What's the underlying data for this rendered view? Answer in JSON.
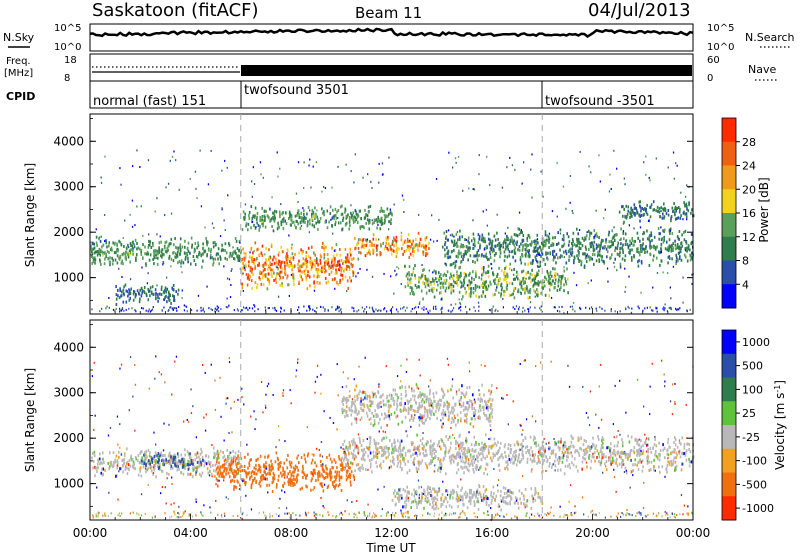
{
  "header": {
    "station": "Saskatoon (fitACF)",
    "beam": "Beam 11",
    "date": "04/Jul/2013"
  },
  "params_panel": {
    "nsky_label": "N.Sky",
    "nsky_ticks": [
      "10^5",
      "10^0"
    ],
    "nsearch_label": "N.Search",
    "nsearch_ticks": [
      "10^5",
      "10^0"
    ],
    "freq_label_1": "Freq.",
    "freq_label_2": "[MHz]",
    "freq_ticks": [
      "18",
      "8"
    ],
    "nave_label": "Nave",
    "nave_ticks": [
      "60",
      "0"
    ],
    "cpid_label": "CPID",
    "cpid_segments": [
      {
        "name": "normal (fast) 151",
        "start_hour": 0
      },
      {
        "name": "twofsound 3501",
        "start_hour": 6
      },
      {
        "name": "twofsound -3501",
        "start_hour": 18
      }
    ]
  },
  "colors": {
    "power_scale": [
      "#0000ff",
      "#2a4fa8",
      "#2e7d4a",
      "#5aa05a",
      "#f2d21a",
      "#f09a1a",
      "#f06010",
      "#ff2a00"
    ],
    "velocity_scale": [
      "#0000ff",
      "#2a4fa8",
      "#2e7d4a",
      "#5fc23a",
      "#b8b8b8",
      "#f2a020",
      "#f07010",
      "#ff2a00"
    ],
    "ground_scatter": "#b8b8b8"
  },
  "chart_data": [
    {
      "type": "heatmap",
      "name": "power",
      "ylabel": "Slant Range [km]",
      "xlabel": "Time UT",
      "xlim": [
        0,
        24
      ],
      "ylim": [
        200,
        4600
      ],
      "x_ticks": [
        "00:00",
        "04:00",
        "08:00",
        "12:00",
        "16:00",
        "20:00",
        "00:00"
      ],
      "y_ticks": [
        "1000",
        "2000",
        "3000",
        "4000"
      ],
      "colorbar": {
        "label": "Power [dB]",
        "ticks": [
          "4",
          "8",
          "12",
          "16",
          "20",
          "24",
          "28"
        ],
        "range": [
          0,
          32
        ]
      },
      "dashed_vlines_hours": [
        6,
        18
      ],
      "echo_bands": [
        {
          "t0": 0.0,
          "t1": 6.0,
          "r0": 1200,
          "r1": 1900,
          "level": 14
        },
        {
          "t0": 6.0,
          "t1": 10.5,
          "r0": 700,
          "r1": 1800,
          "level": 28
        },
        {
          "t0": 10.5,
          "t1": 13.5,
          "r0": 1400,
          "r1": 2000,
          "level": 26
        },
        {
          "t0": 12.5,
          "t1": 19.0,
          "r0": 500,
          "r1": 1300,
          "level": 16
        },
        {
          "t0": 14.0,
          "t1": 24.0,
          "r0": 1200,
          "r1": 2100,
          "level": 12
        },
        {
          "t0": 1.0,
          "t1": 3.5,
          "r0": 400,
          "r1": 900,
          "level": 10
        },
        {
          "t0": 6.0,
          "t1": 12.0,
          "r0": 2000,
          "r1": 2600,
          "level": 14
        },
        {
          "t0": 21.0,
          "t1": 24.0,
          "r0": 2200,
          "r1": 2700,
          "level": 10
        }
      ]
    },
    {
      "type": "heatmap",
      "name": "velocity",
      "ylabel": "Slant Range [km]",
      "xlabel": "Time UT",
      "xlim": [
        0,
        24
      ],
      "ylim": [
        200,
        4600
      ],
      "x_ticks": [
        "00:00",
        "04:00",
        "08:00",
        "12:00",
        "16:00",
        "20:00",
        "00:00"
      ],
      "y_ticks": [
        "1000",
        "2000",
        "3000",
        "4000"
      ],
      "colorbar": {
        "label": "Velocity [m s^-1]",
        "ticks": [
          "1000",
          "500",
          "100",
          "25",
          "-25",
          "-100",
          "-500",
          "-1000"
        ]
      },
      "dashed_vlines_hours": [
        6,
        18
      ],
      "echo_bands": [
        {
          "t0": 0.0,
          "t1": 6.0,
          "r0": 1100,
          "r1": 1800,
          "vel": 0
        },
        {
          "t0": 2.0,
          "t1": 4.5,
          "r0": 1300,
          "r1": 1700,
          "vel": 150
        },
        {
          "t0": 5.0,
          "t1": 10.5,
          "r0": 800,
          "r1": 1700,
          "vel": -300
        },
        {
          "t0": 10.0,
          "t1": 24.0,
          "r0": 1200,
          "r1": 2100,
          "vel": 0
        },
        {
          "t0": 10.0,
          "t1": 16.0,
          "r0": 2200,
          "r1": 3200,
          "vel": 0
        },
        {
          "t0": 12.0,
          "t1": 18.0,
          "r0": 400,
          "r1": 1000,
          "vel": 0
        }
      ]
    }
  ]
}
